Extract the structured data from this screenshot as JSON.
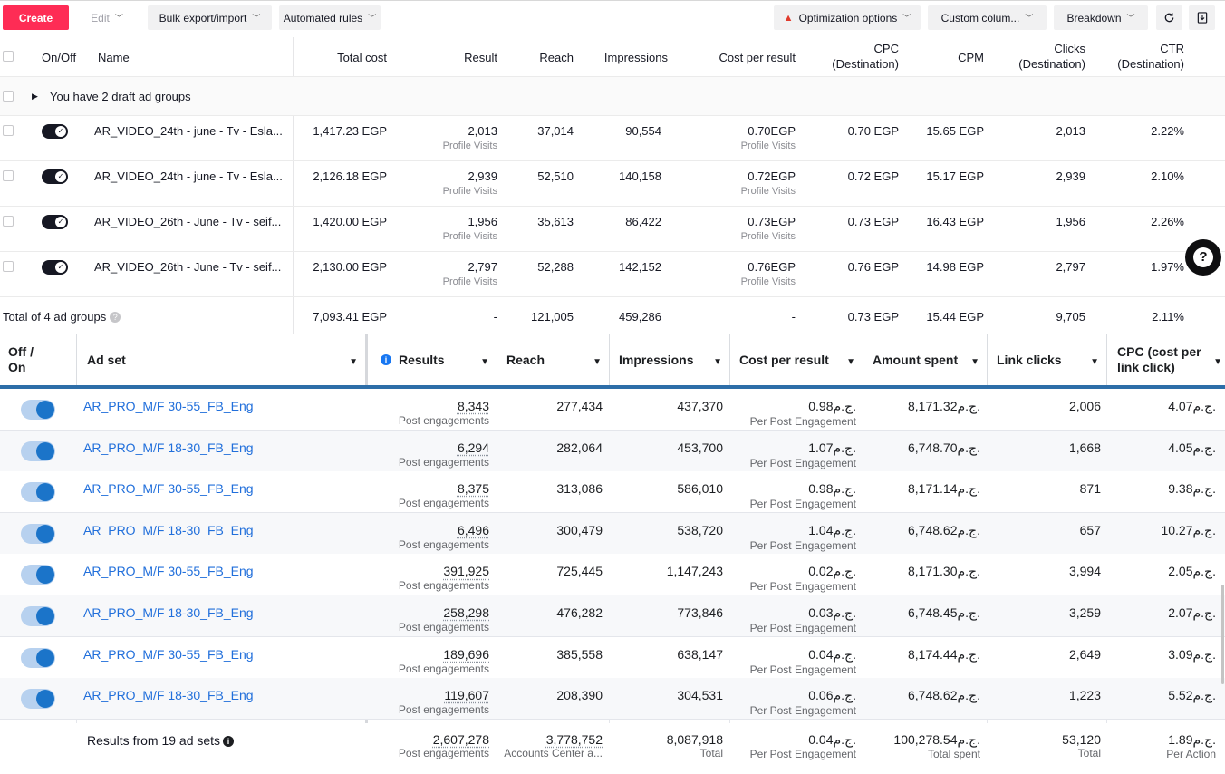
{
  "toolbar": {
    "create": "Create",
    "edit": "Edit",
    "bulk": "Bulk export/import",
    "rules": "Automated rules",
    "optimization": "Optimization options",
    "columns": "Custom colum...",
    "breakdown": "Breakdown"
  },
  "top_table": {
    "headers": {
      "onoff": "On/Off",
      "name": "Name",
      "total_cost": "Total cost",
      "result": "Result",
      "reach": "Reach",
      "impressions": "Impressions",
      "cost_per_result": "Cost per result",
      "cpc_line1": "CPC",
      "cpc_line2": "(Destination)",
      "cpm": "CPM",
      "clicks_line1": "Clicks",
      "clicks_line2": "(Destination)",
      "ctr_line1": "CTR",
      "ctr_line2": "(Destination)"
    },
    "draft": "You have 2 draft ad groups",
    "rows": [
      {
        "name": "AR_VIDEO_24th - june - Tv - Esla...",
        "total_cost": "1,417.23 EGP",
        "result": "2,013",
        "result_sub": "Profile Visits",
        "reach": "37,014",
        "impressions": "90,554",
        "cpr": "0.70EGP",
        "cpr_sub": "Profile Visits",
        "cpc": "0.70 EGP",
        "cpm": "15.65 EGP",
        "clicks": "2,013",
        "ctr": "2.22%"
      },
      {
        "name": "AR_VIDEO_24th - june - Tv - Esla...",
        "total_cost": "2,126.18 EGP",
        "result": "2,939",
        "result_sub": "Profile Visits",
        "reach": "52,510",
        "impressions": "140,158",
        "cpr": "0.72EGP",
        "cpr_sub": "Profile Visits",
        "cpc": "0.72 EGP",
        "cpm": "15.17 EGP",
        "clicks": "2,939",
        "ctr": "2.10%"
      },
      {
        "name": "AR_VIDEO_26th - June - Tv - seif...",
        "total_cost": "1,420.00 EGP",
        "result": "1,956",
        "result_sub": "Profile Visits",
        "reach": "35,613",
        "impressions": "86,422",
        "cpr": "0.73EGP",
        "cpr_sub": "Profile Visits",
        "cpc": "0.73 EGP",
        "cpm": "16.43 EGP",
        "clicks": "1,956",
        "ctr": "2.26%"
      },
      {
        "name": "AR_VIDEO_26th - June - Tv - seif...",
        "total_cost": "2,130.00 EGP",
        "result": "2,797",
        "result_sub": "Profile Visits",
        "reach": "52,288",
        "impressions": "142,152",
        "cpr": "0.76EGP",
        "cpr_sub": "Profile Visits",
        "cpc": "0.76 EGP",
        "cpm": "14.98 EGP",
        "clicks": "2,797",
        "ctr": "1.97%"
      }
    ],
    "total": {
      "label": "Total of 4 ad groups",
      "total_cost": "7,093.41 EGP",
      "result": "-",
      "reach": "121,005",
      "impressions": "459,286",
      "cpr": "-",
      "cpc": "0.73 EGP",
      "cpm": "15.44 EGP",
      "clicks": "9,705",
      "ctr": "2.11%"
    }
  },
  "bottom_table": {
    "headers": {
      "offon_line1": "Off /",
      "offon_line2": "On",
      "adset": "Ad set",
      "results": "Results",
      "reach": "Reach",
      "impressions": "Impressions",
      "cost_per_result": "Cost per result",
      "amount_spent": "Amount spent",
      "link_clicks": "Link clicks",
      "cpc_line1": "CPC (cost per",
      "cpc_line2": "link click)"
    },
    "rows": [
      {
        "name": "AR_PRO_M/F 30-55_FB_Eng",
        "results": "8,343",
        "results_sub": "Post engagements",
        "reach": "277,434",
        "impressions": "437,370",
        "cpr": "0.98ج.م.",
        "cpr_sub": "Per Post Engagement",
        "spent": "8,171.32ج.م.",
        "clicks": "2,006",
        "cpc": "4.07ج.م."
      },
      {
        "name": "AR_PRO_M/F 18-30_FB_Eng",
        "results": "6,294",
        "results_sub": "Post engagements",
        "reach": "282,064",
        "impressions": "453,700",
        "cpr": "1.07ج.م.",
        "cpr_sub": "Per Post Engagement",
        "spent": "6,748.70ج.م.",
        "clicks": "1,668",
        "cpc": "4.05ج.م."
      },
      {
        "name": "AR_PRO_M/F 30-55_FB_Eng",
        "results": "8,375",
        "results_sub": "Post engagements",
        "reach": "313,086",
        "impressions": "586,010",
        "cpr": "0.98ج.م.",
        "cpr_sub": "Per Post Engagement",
        "spent": "8,171.14ج.م.",
        "clicks": "871",
        "cpc": "9.38ج.م."
      },
      {
        "name": "AR_PRO_M/F 18-30_FB_Eng",
        "results": "6,496",
        "results_sub": "Post engagements",
        "reach": "300,479",
        "impressions": "538,720",
        "cpr": "1.04ج.م.",
        "cpr_sub": "Per Post Engagement",
        "spent": "6,748.62ج.م.",
        "clicks": "657",
        "cpc": "10.27ج.م."
      },
      {
        "name": "AR_PRO_M/F 30-55_FB_Eng",
        "results": "391,925",
        "results_sub": "Post engagements",
        "reach": "725,445",
        "impressions": "1,147,243",
        "cpr": "0.02ج.م.",
        "cpr_sub": "Per Post Engagement",
        "spent": "8,171.30ج.م.",
        "clicks": "3,994",
        "cpc": "2.05ج.م."
      },
      {
        "name": "AR_PRO_M/F 18-30_FB_Eng",
        "results": "258,298",
        "results_sub": "Post engagements",
        "reach": "476,282",
        "impressions": "773,846",
        "cpr": "0.03ج.م.",
        "cpr_sub": "Per Post Engagement",
        "spent": "6,748.45ج.م.",
        "clicks": "3,259",
        "cpc": "2.07ج.م."
      },
      {
        "name": "AR_PRO_M/F 30-55_FB_Eng",
        "results": "189,696",
        "results_sub": "Post engagements",
        "reach": "385,558",
        "impressions": "638,147",
        "cpr": "0.04ج.م.",
        "cpr_sub": "Per Post Engagement",
        "spent": "8,174.44ج.م.",
        "clicks": "2,649",
        "cpc": "3.09ج.م."
      },
      {
        "name": "AR_PRO_M/F 18-30_FB_Eng",
        "results": "119,607",
        "results_sub": "Post engagements",
        "reach": "208,390",
        "impressions": "304,531",
        "cpr": "0.06ج.م.",
        "cpr_sub": "Per Post Engagement",
        "spent": "6,748.62ج.م.",
        "clicks": "1,223",
        "cpc": "5.52ج.م."
      }
    ],
    "footer": {
      "label": "Results from 19 ad sets",
      "results": "2,607,278",
      "results_sub": "Post engagements",
      "reach": "3,778,752",
      "reach_sub": "Accounts Center a...",
      "impressions": "8,087,918",
      "impressions_sub": "Total",
      "cpr": "0.04ج.م.",
      "cpr_sub": "Per Post Engagement",
      "spent": "100,278.54ج.م.",
      "spent_sub": "Total spent",
      "clicks": "53,120",
      "clicks_sub": "Total",
      "cpc": "1.89ج.م.",
      "cpc_sub": "Per Action"
    }
  },
  "icons": {
    "refresh": "refresh-icon",
    "export": "export-icon",
    "help": "help-icon",
    "warning": "warning-icon",
    "info": "info-icon"
  },
  "colors": {
    "create": "#fe2c55",
    "link": "#216fdb",
    "toggle_on": "#1b74c9",
    "header_rule": "#2d6ea8"
  }
}
